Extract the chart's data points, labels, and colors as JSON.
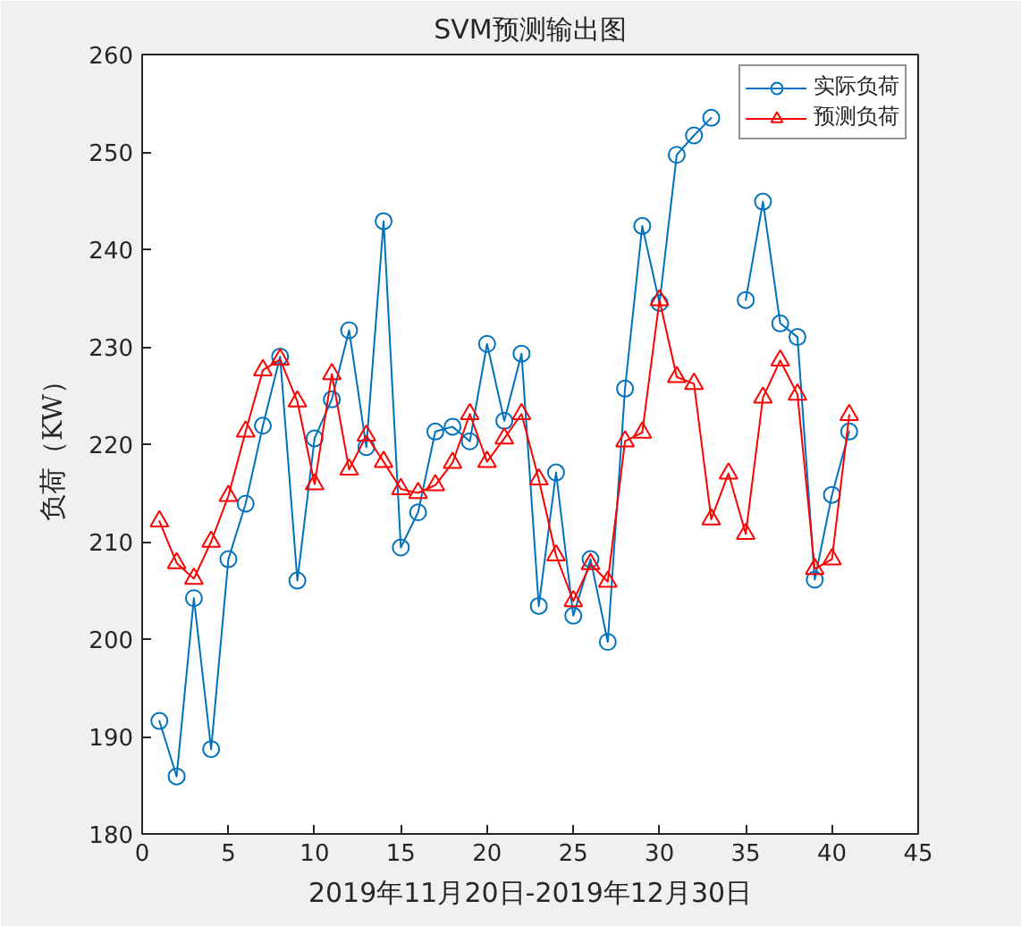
{
  "chart_data": {
    "type": "line",
    "title": "SVM预测输出图",
    "xlabel": "2019年11月20日-2019年12月30日",
    "ylabel": "负荷（KW）",
    "x": [
      1,
      2,
      3,
      4,
      5,
      6,
      7,
      8,
      9,
      10,
      11,
      12,
      13,
      14,
      15,
      16,
      17,
      18,
      19,
      20,
      21,
      22,
      23,
      24,
      25,
      26,
      27,
      28,
      29,
      30,
      31,
      32,
      33,
      34,
      35,
      36,
      37,
      38,
      39,
      40,
      41
    ],
    "series": [
      {
        "name": "实际负荷",
        "color": "#0072bd",
        "marker": "circle",
        "values": [
          191.6,
          185.9,
          204.2,
          188.7,
          208.2,
          213.9,
          221.9,
          229.0,
          206.0,
          220.6,
          224.6,
          231.7,
          219.7,
          242.9,
          209.4,
          213.0,
          221.3,
          221.8,
          220.3,
          230.3,
          222.4,
          229.3,
          203.4,
          217.1,
          202.4,
          208.2,
          199.7,
          225.7,
          242.4,
          234.5,
          249.7,
          251.7,
          253.5,
          null,
          234.8,
          244.9,
          232.4,
          231.0,
          206.1,
          214.8,
          221.3
        ]
      },
      {
        "name": "预测负荷",
        "color": "#ff0000",
        "marker": "triangle",
        "values": [
          212.1,
          207.8,
          206.2,
          210.0,
          214.7,
          221.3,
          227.6,
          228.7,
          224.4,
          215.9,
          227.2,
          217.4,
          220.9,
          218.2,
          215.4,
          215.0,
          215.8,
          218.1,
          223.1,
          218.2,
          220.6,
          223.1,
          216.4,
          208.6,
          203.9,
          207.7,
          205.9,
          220.3,
          221.2,
          234.8,
          226.9,
          226.2,
          212.3,
          217.0,
          210.8,
          224.8,
          228.6,
          225.1,
          207.2,
          208.2,
          223.0
        ]
      }
    ],
    "xlim": [
      0,
      45
    ],
    "xticks": [
      0,
      5,
      10,
      15,
      20,
      25,
      30,
      35,
      40,
      45
    ],
    "ylim": [
      180,
      260
    ],
    "yticks": [
      180,
      190,
      200,
      210,
      220,
      230,
      240,
      250,
      260
    ],
    "grid": false,
    "legend": "top right",
    "line_style": "solid"
  }
}
